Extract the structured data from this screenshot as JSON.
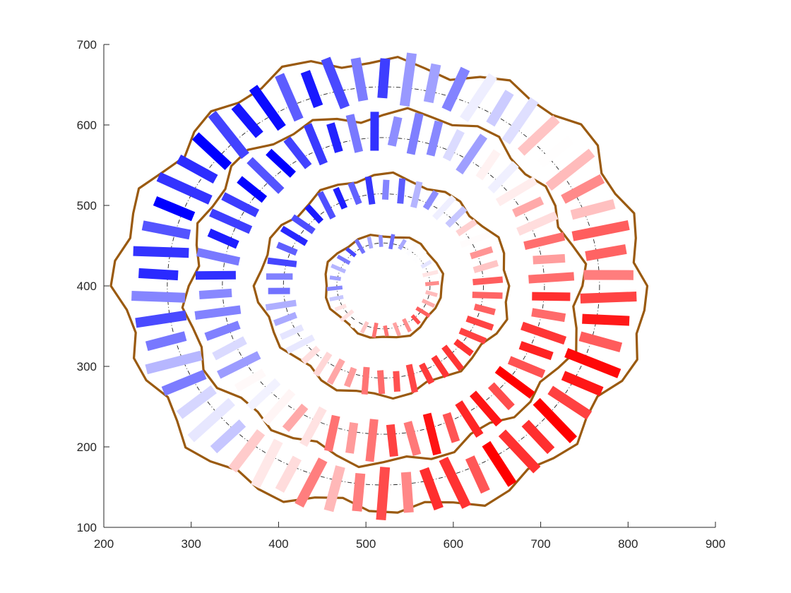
{
  "chart_data": {
    "type": "scatter",
    "title": "",
    "xlabel": "",
    "ylabel": "",
    "xlim": [
      200,
      900
    ],
    "ylim": [
      100,
      700
    ],
    "x_ticks": [
      "200",
      "300",
      "400",
      "500",
      "600",
      "700",
      "800",
      "900"
    ],
    "y_ticks": [
      "100",
      "200",
      "300",
      "400",
      "500",
      "600",
      "700"
    ],
    "grid": false,
    "legend": "none",
    "center": [
      520,
      400
    ],
    "colors": {
      "outline": "#9a5a10",
      "guide": "#222222",
      "negative": "#0000ff",
      "positive": "#ff0000"
    },
    "colormap": "blue-white-red",
    "rings": [
      {
        "guide_radius": 55,
        "rx": 58,
        "ry": 56,
        "segments": 28,
        "seg_len": 17,
        "seg_width": 5.5,
        "value_amp": 0.55,
        "value_phase": 40
      },
      {
        "guide_radius": 118,
        "rx": 125,
        "ry": 118,
        "segments": 42,
        "seg_len": 32,
        "seg_width": 9,
        "value_amp": 0.8,
        "value_phase": 45
      },
      {
        "guide_radius": 190,
        "rx": 200,
        "ry": 192,
        "segments": 52,
        "seg_len": 48,
        "seg_width": 12,
        "value_amp": 0.85,
        "value_phase": 50
      },
      {
        "guide_radius": 255,
        "rx": 270,
        "ry": 250,
        "segments": 58,
        "seg_len": 60,
        "seg_width": 14,
        "value_amp": 0.9,
        "value_phase": 55
      }
    ],
    "orientation_segments": [
      {
        "ring": 0,
        "angle": 0,
        "value": -0.3
      },
      {
        "ring": 0,
        "angle": 90,
        "value": -0.6
      },
      {
        "ring": 0,
        "angle": 180,
        "value": 0.2
      },
      {
        "ring": 0,
        "angle": 270,
        "value": 0.5
      },
      {
        "ring": 1,
        "angle": 0,
        "value": -0.5
      },
      {
        "ring": 1,
        "angle": 90,
        "value": -0.8
      },
      {
        "ring": 1,
        "angle": 180,
        "value": 0.3
      },
      {
        "ring": 1,
        "angle": 270,
        "value": 0.7
      },
      {
        "ring": 2,
        "angle": 0,
        "value": -0.4
      },
      {
        "ring": 2,
        "angle": 90,
        "value": -0.9
      },
      {
        "ring": 2,
        "angle": 180,
        "value": 0.2
      },
      {
        "ring": 2,
        "angle": 270,
        "value": 0.8
      },
      {
        "ring": 3,
        "angle": 0,
        "value": -0.2
      },
      {
        "ring": 3,
        "angle": 90,
        "value": -0.9
      },
      {
        "ring": 3,
        "angle": 180,
        "value": 0.3
      },
      {
        "ring": 3,
        "angle": 300,
        "value": 1.0
      }
    ]
  }
}
